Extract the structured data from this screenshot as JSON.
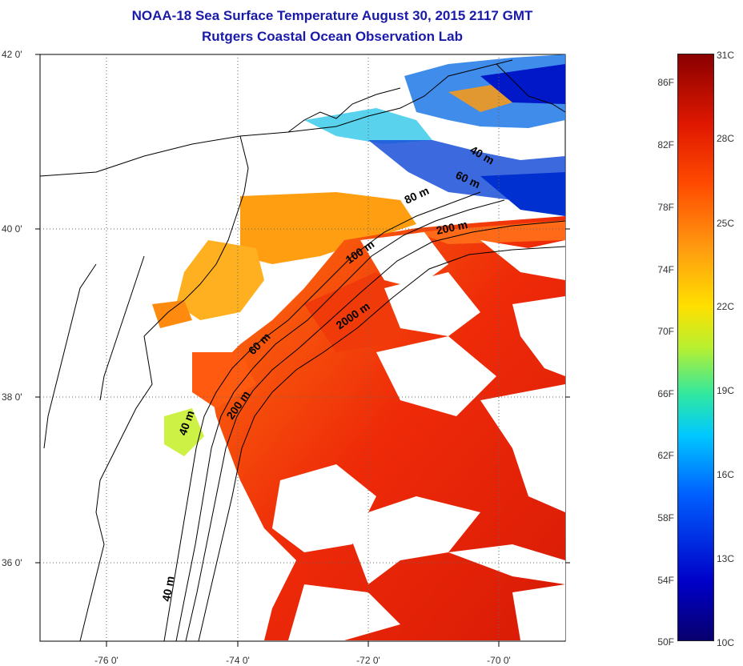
{
  "title": "NOAA-18 Sea Surface Temperature August 30, 2015 2117 GMT",
  "subtitle": "Rutgers Coastal Ocean Observation Lab",
  "lat_labels": [
    "42 0'",
    "40 0'",
    "38 0'",
    "36 0'"
  ],
  "lon_labels": [
    "-76 0'",
    "-74 0'",
    "-72 0'",
    "-70 0'"
  ],
  "contour_labels": [
    "40 m",
    "60 m",
    "80 m",
    "100 m",
    "200 m",
    "2000 m"
  ],
  "colorbar": {
    "fahrenheit": [
      "86F",
      "82F",
      "78F",
      "74F",
      "70F",
      "66F",
      "62F",
      "58F",
      "54F",
      "50F"
    ],
    "celsius": [
      "31C",
      "28C",
      "25C",
      "22C",
      "19C",
      "16C",
      "13C",
      "10C"
    ]
  },
  "colors": {
    "title": "#1a1aa8",
    "warm": "#e8200a",
    "land_line": "#000000"
  }
}
